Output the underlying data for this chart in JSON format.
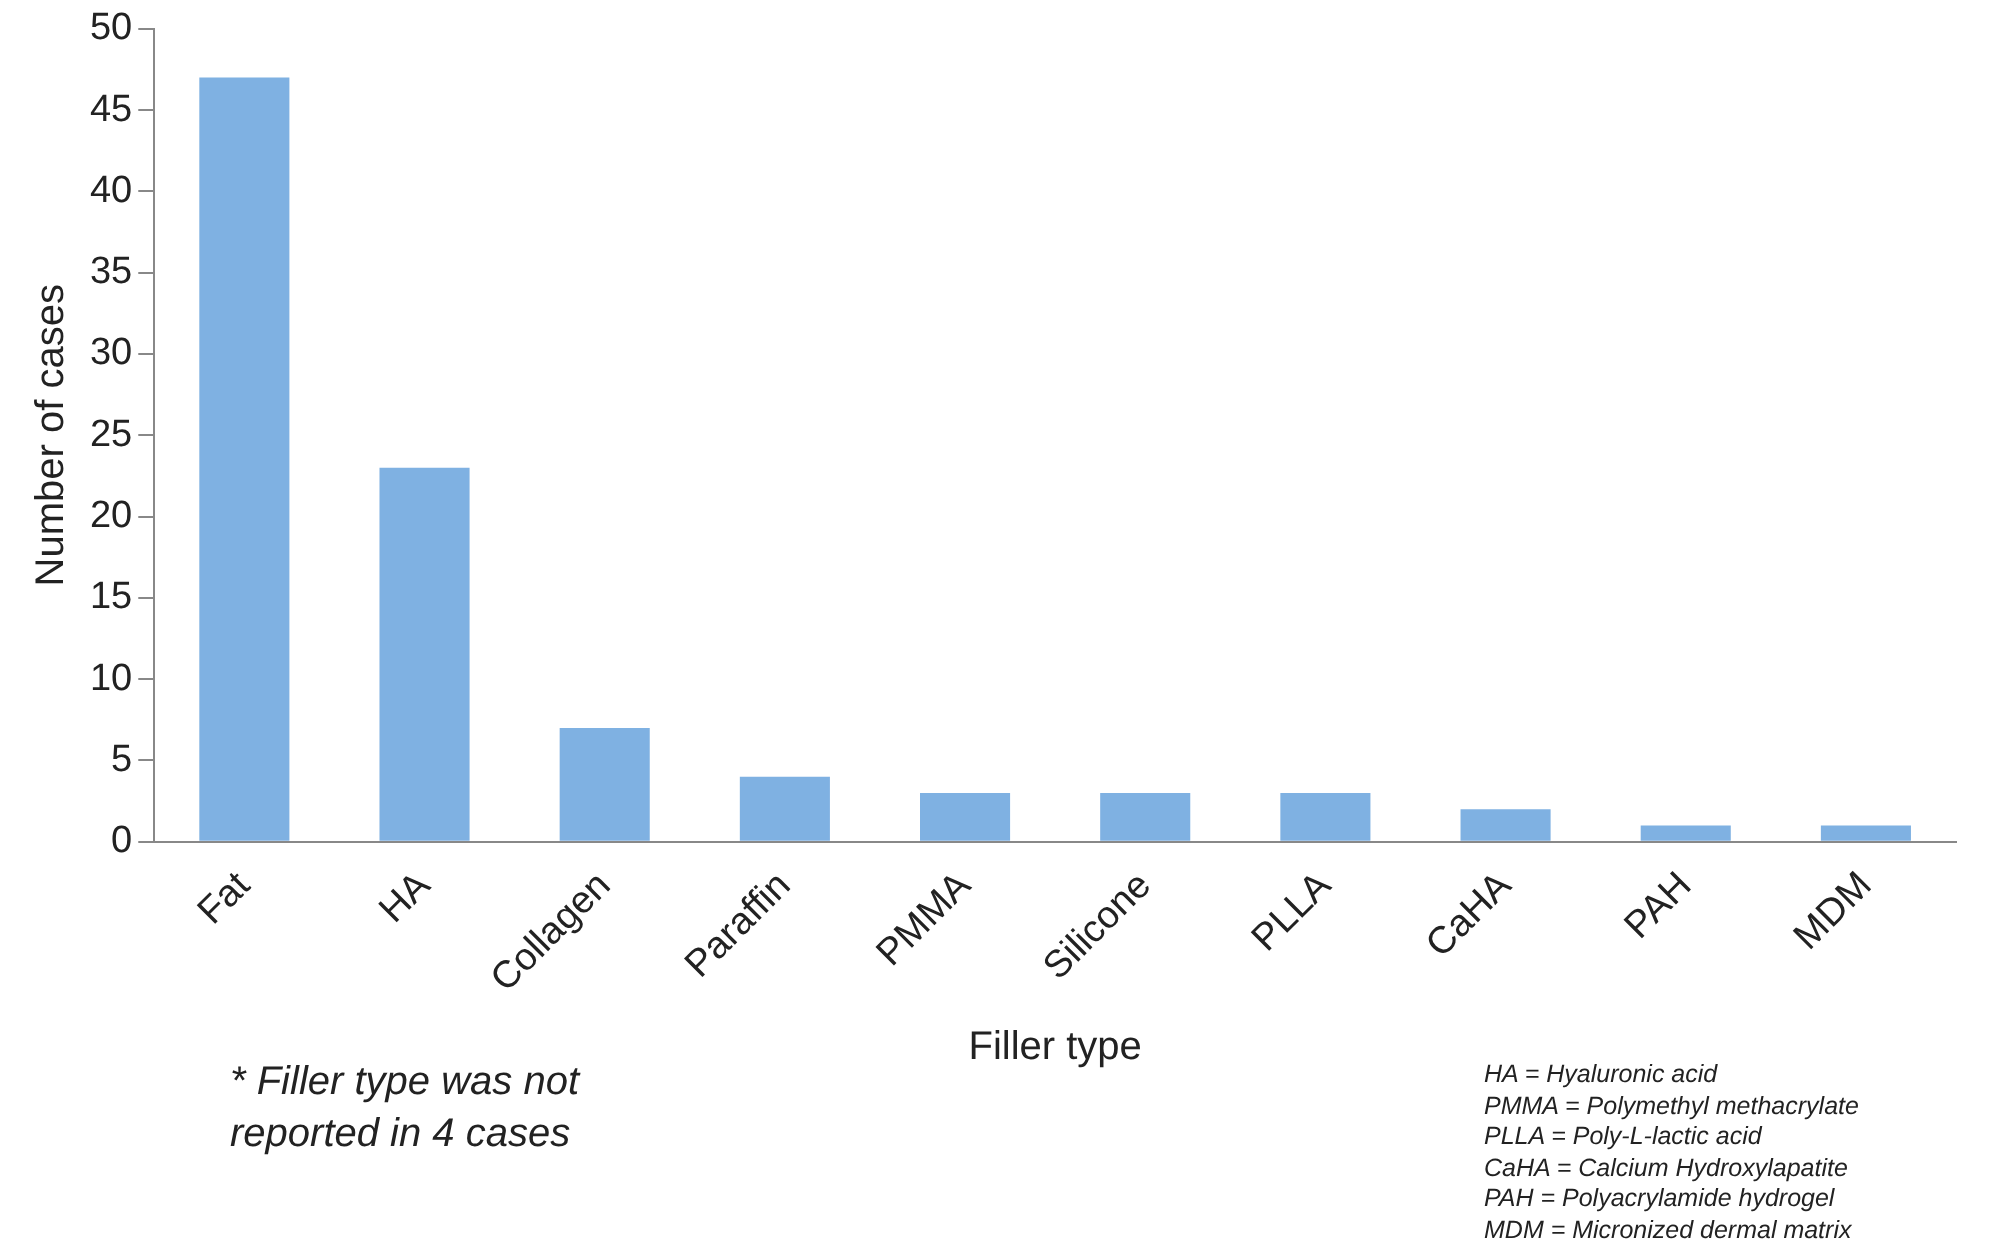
{
  "chart_data": {
    "type": "bar",
    "xlabel": "Filler type",
    "ylabel": "Number of cases",
    "categories": [
      "Fat",
      "HA",
      "Collagen",
      "Paraffin",
      "PMMA",
      "Silicone",
      "PLLA",
      "CaHA",
      "PAH",
      "MDM"
    ],
    "values": [
      47,
      23,
      7,
      4,
      3,
      3,
      3,
      2,
      1,
      1
    ],
    "color": "#7fb1e2",
    "ylim": [
      0,
      50
    ],
    "yticks": [
      0,
      5,
      10,
      15,
      20,
      25,
      30,
      35,
      40,
      45,
      50
    ],
    "grid": false,
    "legend": false,
    "annotations": [
      "* Filler type was not reported in 4 cases",
      "HA = Hyaluronic acid",
      "PMMA = Polymethyl methacrylate",
      "PLLA = Poly-L-lactic acid",
      "CaHA = Calcium Hydroxylapatite",
      "PAH = Polyacrylamide hydrogel",
      "MDM = Micronized dermal matrix"
    ]
  }
}
